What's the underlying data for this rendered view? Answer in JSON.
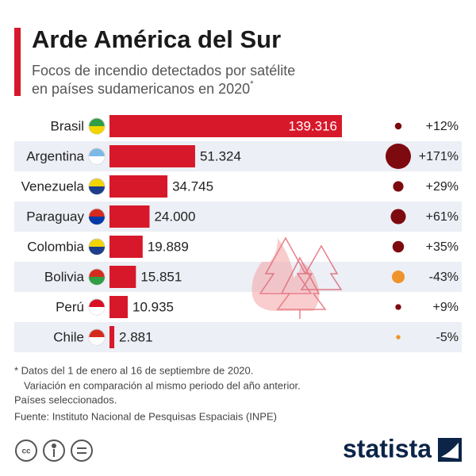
{
  "chart_data": {
    "type": "bar",
    "title": "Arde América del Sur",
    "subtitle": [
      "Focos de incendio detectados por satélite",
      "en países sudamericanos en 2020"
    ],
    "subtitle_mark": "*",
    "categories": [
      "Brasil",
      "Argentina",
      "Venezuela",
      "Paraguay",
      "Colombia",
      "Bolivia",
      "Perú",
      "Chile"
    ],
    "values": [
      139316,
      51324,
      34745,
      24000,
      19889,
      15851,
      10935,
      2881
    ],
    "value_labels": [
      "139.316",
      "51.324",
      "34.745",
      "24.000",
      "19.889",
      "15.851",
      "10.935",
      "2.881"
    ],
    "color": "#d7182a",
    "changes": [
      12,
      171,
      29,
      61,
      35,
      -43,
      9,
      -5
    ],
    "change_labels": [
      "+12%",
      "+171%",
      "+29%",
      "+61%",
      "+35%",
      "-43%",
      "+9%",
      "-5%"
    ],
    "positive_color": "#7d0a0f",
    "negative_color": "#f0932b",
    "notes": [
      "* Datos del 1 de enero al 16 de septiembre de 2020.",
      "Variación en comparación al mismo periodo del año anterior.",
      "Países seleccionados."
    ],
    "source": "Fuente: Instituto Nacional de Pesquisas Espaciais (INPE)",
    "brand": "statista"
  }
}
